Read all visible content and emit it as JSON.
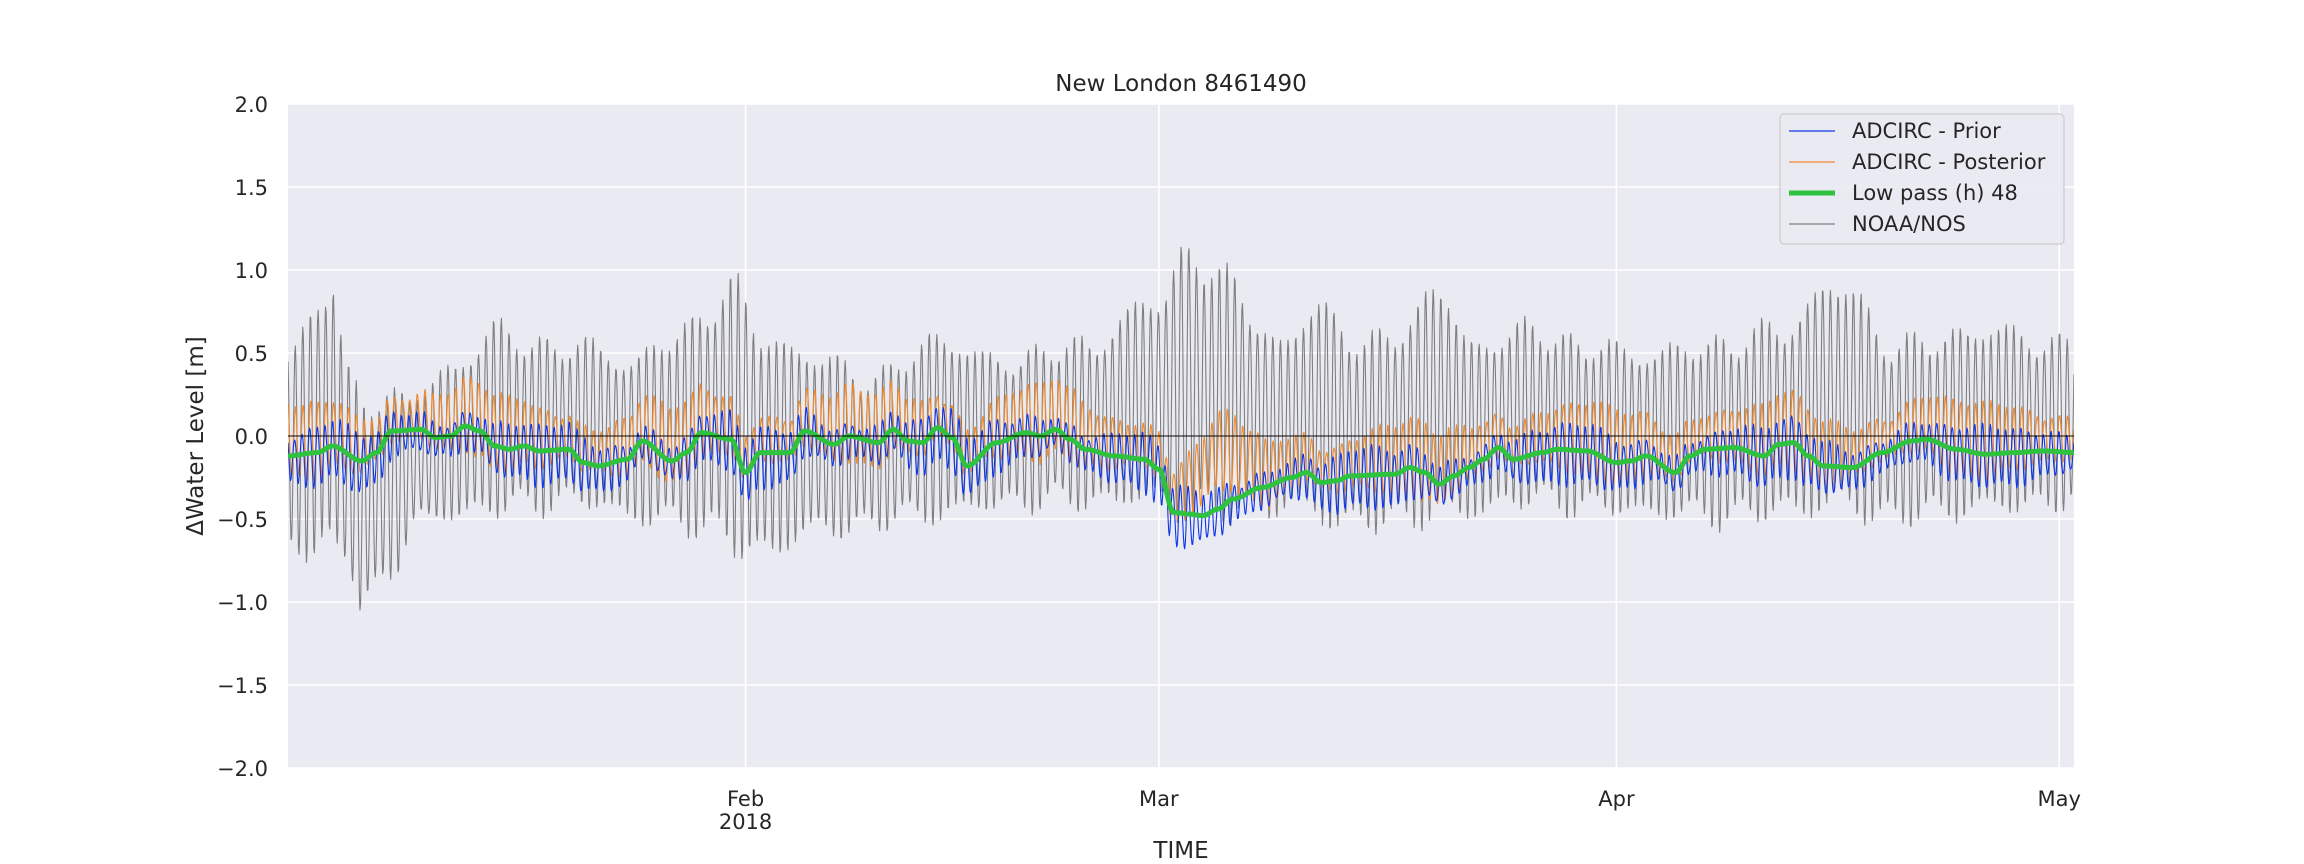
{
  "chart_data": {
    "type": "line",
    "title": "New London  8461490",
    "xlabel": "TIME",
    "ylabel": "ΔWater Level [m]",
    "x_domain": [
      "2018-01-01",
      "2018-05-02"
    ],
    "ylim": [
      -2.0,
      2.0
    ],
    "yticks": [
      -2.0,
      -1.5,
      -1.0,
      -0.5,
      0.0,
      0.5,
      1.0,
      1.5,
      2.0
    ],
    "ytick_labels": [
      "−2.0",
      "−1.5",
      "−1.0",
      "−0.5",
      "0.0",
      "0.5",
      "1.0",
      "1.5",
      "2.0"
    ],
    "xticks": [
      {
        "date": "2018-02-01",
        "label": "Feb",
        "sublabel": "2018"
      },
      {
        "date": "2018-03-01",
        "label": "Mar",
        "sublabel": ""
      },
      {
        "date": "2018-04-01",
        "label": "Apr",
        "sublabel": ""
      },
      {
        "date": "2018-05-01",
        "label": "May",
        "sublabel": ""
      }
    ],
    "grid": true,
    "legend_position": "top-right",
    "background": "#eaeaf2",
    "zero_line": true,
    "sampling": "hourly (synthetic reconstruction from low-pass envelope + semidiurnal tide)",
    "series": [
      {
        "name": "ADCIRC - Prior",
        "color": "#0d36e8",
        "style": "thin",
        "tide_amplitude": 0.17
      },
      {
        "name": "ADCIRC - Posterior",
        "color": "#f08a2c",
        "style": "thin",
        "tide_amplitude": 0.22
      },
      {
        "name": "Low pass (h) 48",
        "color": "#2ec23e",
        "style": "thick"
      },
      {
        "name": "NOAA/NOS",
        "color": "#7f7f7f",
        "style": "thin",
        "tide_amplitude": 0.5
      }
    ],
    "lowpass_points": [
      [
        "2018-01-01",
        -0.12
      ],
      [
        "2018-01-03",
        -0.1
      ],
      [
        "2018-01-04",
        -0.06
      ],
      [
        "2018-01-06",
        -0.15
      ],
      [
        "2018-01-07",
        -0.1
      ],
      [
        "2018-01-08",
        0.03
      ],
      [
        "2018-01-10",
        0.04
      ],
      [
        "2018-01-11",
        -0.01
      ],
      [
        "2018-01-12",
        0.0
      ],
      [
        "2018-01-13",
        0.06
      ],
      [
        "2018-01-14",
        0.03
      ],
      [
        "2018-01-15",
        -0.06
      ],
      [
        "2018-01-16",
        -0.08
      ],
      [
        "2018-01-17",
        -0.06
      ],
      [
        "2018-01-18",
        -0.09
      ],
      [
        "2018-01-20",
        -0.08
      ],
      [
        "2018-01-21",
        -0.16
      ],
      [
        "2018-01-22",
        -0.18
      ],
      [
        "2018-01-24",
        -0.14
      ],
      [
        "2018-01-25",
        -0.03
      ],
      [
        "2018-01-27",
        -0.15
      ],
      [
        "2018-01-28",
        -0.1
      ],
      [
        "2018-01-29",
        0.02
      ],
      [
        "2018-01-31",
        -0.02
      ],
      [
        "2018-02-01",
        -0.22
      ],
      [
        "2018-02-02",
        -0.1
      ],
      [
        "2018-02-04",
        -0.1
      ],
      [
        "2018-02-05",
        0.03
      ],
      [
        "2018-02-07",
        -0.05
      ],
      [
        "2018-02-08",
        0.0
      ],
      [
        "2018-02-10",
        -0.04
      ],
      [
        "2018-02-11",
        0.04
      ],
      [
        "2018-02-12",
        -0.03
      ],
      [
        "2018-02-13",
        -0.04
      ],
      [
        "2018-02-14",
        0.05
      ],
      [
        "2018-02-15",
        -0.01
      ],
      [
        "2018-02-16",
        -0.18
      ],
      [
        "2018-02-18",
        -0.04
      ],
      [
        "2018-02-20",
        0.02
      ],
      [
        "2018-02-21",
        0.0
      ],
      [
        "2018-02-22",
        0.04
      ],
      [
        "2018-02-23",
        -0.02
      ],
      [
        "2018-02-24",
        -0.08
      ],
      [
        "2018-02-26",
        -0.12
      ],
      [
        "2018-02-28",
        -0.14
      ],
      [
        "2018-03-01",
        -0.2
      ],
      [
        "2018-03-02",
        -0.46
      ],
      [
        "2018-03-03",
        -0.47
      ],
      [
        "2018-03-04",
        -0.48
      ],
      [
        "2018-03-05",
        -0.44
      ],
      [
        "2018-03-06",
        -0.38
      ],
      [
        "2018-03-08",
        -0.31
      ],
      [
        "2018-03-10",
        -0.25
      ],
      [
        "2018-03-11",
        -0.22
      ],
      [
        "2018-03-12",
        -0.28
      ],
      [
        "2018-03-13",
        -0.27
      ],
      [
        "2018-03-14",
        -0.24
      ],
      [
        "2018-03-17",
        -0.23
      ],
      [
        "2018-03-18",
        -0.19
      ],
      [
        "2018-03-19",
        -0.22
      ],
      [
        "2018-03-20",
        -0.29
      ],
      [
        "2018-03-21",
        -0.24
      ],
      [
        "2018-03-22",
        -0.19
      ],
      [
        "2018-03-23",
        -0.14
      ],
      [
        "2018-03-24",
        -0.07
      ],
      [
        "2018-03-25",
        -0.14
      ],
      [
        "2018-03-27",
        -0.1
      ],
      [
        "2018-03-28",
        -0.08
      ],
      [
        "2018-03-30",
        -0.09
      ],
      [
        "2018-04-01",
        -0.16
      ],
      [
        "2018-04-02",
        -0.15
      ],
      [
        "2018-04-03",
        -0.12
      ],
      [
        "2018-04-05",
        -0.22
      ],
      [
        "2018-04-06",
        -0.12
      ],
      [
        "2018-04-07",
        -0.08
      ],
      [
        "2018-04-09",
        -0.07
      ],
      [
        "2018-04-11",
        -0.12
      ],
      [
        "2018-04-12",
        -0.05
      ],
      [
        "2018-04-13",
        -0.04
      ],
      [
        "2018-04-14",
        -0.12
      ],
      [
        "2018-04-15",
        -0.18
      ],
      [
        "2018-04-17",
        -0.19
      ],
      [
        "2018-04-19",
        -0.1
      ],
      [
        "2018-04-21",
        -0.03
      ],
      [
        "2018-04-22",
        -0.02
      ],
      [
        "2018-04-24",
        -0.08
      ],
      [
        "2018-04-26",
        -0.11
      ],
      [
        "2018-04-28",
        -0.1
      ],
      [
        "2018-04-30",
        -0.09
      ],
      [
        "2018-05-02",
        -0.1
      ]
    ],
    "observed_envelope_points": [
      [
        "2018-01-01",
        0.55
      ],
      [
        "2018-01-04",
        1.05
      ],
      [
        "2018-01-05",
        0.4
      ],
      [
        "2018-01-06",
        0.3
      ],
      [
        "2018-01-08",
        0.3
      ],
      [
        "2018-01-10",
        0.3
      ],
      [
        "2018-01-12",
        0.45
      ],
      [
        "2018-01-15",
        0.7
      ],
      [
        "2018-01-18",
        0.6
      ],
      [
        "2018-01-21",
        0.6
      ],
      [
        "2018-01-24",
        0.5
      ],
      [
        "2018-01-28",
        0.7
      ],
      [
        "2018-01-31",
        1.0
      ],
      [
        "2018-02-02",
        0.7
      ],
      [
        "2018-02-05",
        0.55
      ],
      [
        "2018-02-10",
        0.4
      ],
      [
        "2018-02-14",
        0.65
      ],
      [
        "2018-02-18",
        0.5
      ],
      [
        "2018-02-24",
        0.6
      ],
      [
        "2018-03-01",
        0.9
      ],
      [
        "2018-03-03",
        1.2
      ],
      [
        "2018-03-06",
        1.0
      ],
      [
        "2018-03-09",
        0.6
      ],
      [
        "2018-03-12",
        0.85
      ],
      [
        "2018-03-15",
        0.6
      ],
      [
        "2018-03-18",
        0.75
      ],
      [
        "2018-03-20",
        1.0
      ],
      [
        "2018-03-22",
        0.6
      ],
      [
        "2018-03-26",
        0.7
      ],
      [
        "2018-03-30",
        0.6
      ],
      [
        "2018-04-03",
        0.55
      ],
      [
        "2018-04-07",
        0.6
      ],
      [
        "2018-04-12",
        0.7
      ],
      [
        "2018-04-16",
        1.0
      ],
      [
        "2018-04-20",
        0.6
      ],
      [
        "2018-04-26",
        0.7
      ],
      [
        "2018-05-02",
        0.6
      ]
    ],
    "observed_trough_points": [
      [
        "2018-01-01",
        -0.7
      ],
      [
        "2018-01-03",
        -0.8
      ],
      [
        "2018-01-05",
        -0.75
      ],
      [
        "2018-01-06",
        -1.15
      ],
      [
        "2018-01-08",
        -0.85
      ],
      [
        "2018-01-10",
        -0.55
      ],
      [
        "2018-01-15",
        -0.5
      ],
      [
        "2018-01-20",
        -0.45
      ],
      [
        "2018-01-28",
        -0.6
      ],
      [
        "2018-02-02",
        -0.8
      ],
      [
        "2018-02-05",
        -0.65
      ],
      [
        "2018-02-12",
        -0.55
      ],
      [
        "2018-02-20",
        -0.45
      ],
      [
        "2018-02-28",
        -0.45
      ],
      [
        "2018-03-04",
        -0.55
      ],
      [
        "2018-03-10",
        -0.5
      ],
      [
        "2018-03-14",
        -0.6
      ],
      [
        "2018-03-20",
        -0.55
      ],
      [
        "2018-03-26",
        -0.45
      ],
      [
        "2018-04-01",
        -0.5
      ],
      [
        "2018-04-08",
        -0.55
      ],
      [
        "2018-04-15",
        -0.5
      ],
      [
        "2018-04-20",
        -0.55
      ],
      [
        "2018-04-26",
        -0.5
      ],
      [
        "2018-05-02",
        -0.45
      ]
    ]
  }
}
